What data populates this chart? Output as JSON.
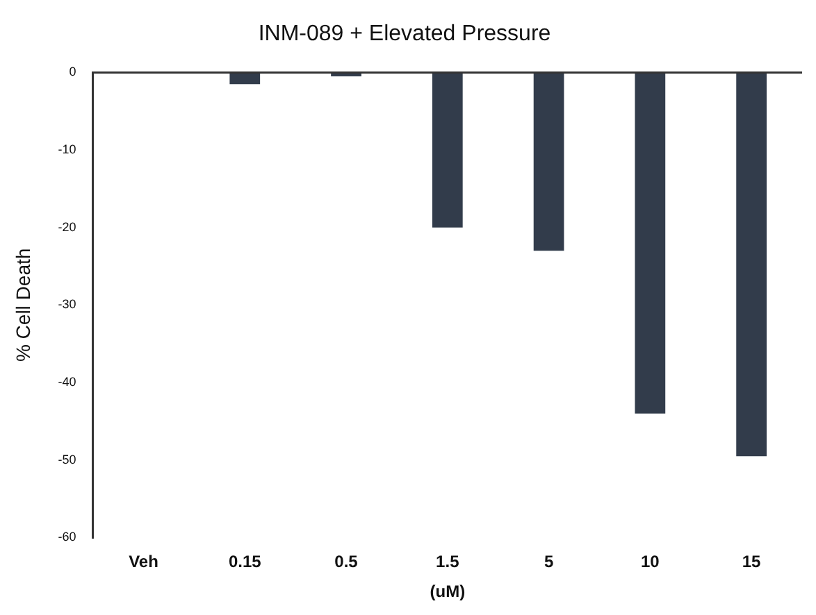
{
  "chart_data": {
    "type": "bar",
    "title": "INM-089 + Elevated Pressure",
    "xlabel": "(uM)",
    "ylabel": "% Cell Death",
    "categories": [
      "Veh",
      "0.15",
      "0.5",
      "1.5",
      "5",
      "10",
      "15"
    ],
    "values": [
      0,
      -1.5,
      -0.5,
      -20,
      -23,
      -44,
      -49.5
    ],
    "color": "#323c4b",
    "ylim": [
      -60,
      0
    ],
    "yticks": [
      0,
      -10,
      -20,
      -30,
      -40,
      -50,
      -60
    ]
  }
}
